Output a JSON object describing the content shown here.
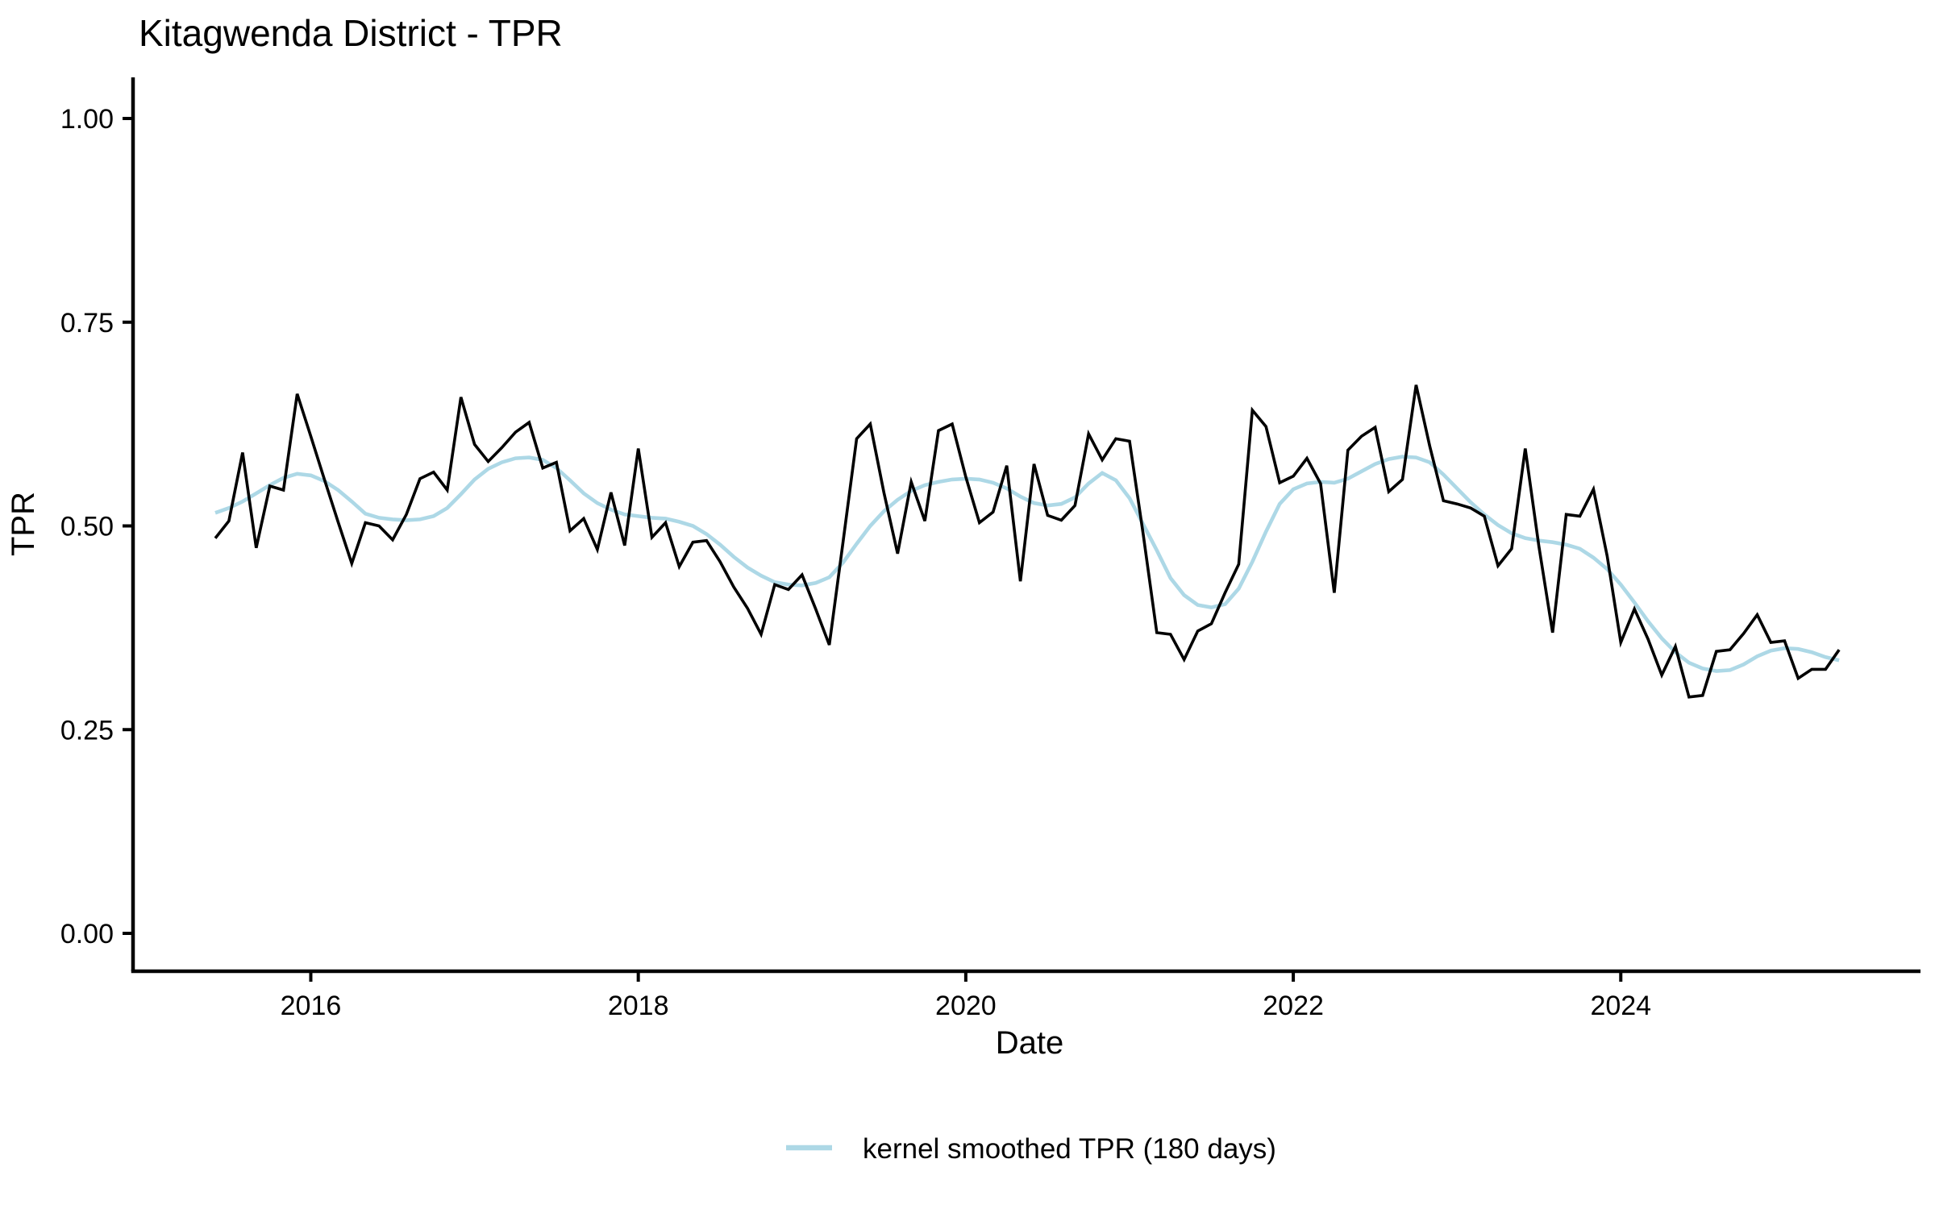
{
  "chart_data": {
    "type": "line",
    "title": "Kitagwenda District - TPR",
    "xlabel": "Date",
    "ylabel": "TPR",
    "ylim": [
      0,
      1
    ],
    "yticks": [
      0,
      0.25,
      0.5,
      0.75,
      1
    ],
    "ytick_labels": [
      "0.00",
      "0.25",
      "0.50",
      "0.75",
      "1.00"
    ],
    "xticks": [
      2016,
      2018,
      2020,
      2022,
      2024
    ],
    "x_start": "2015-06",
    "x_end": "2025-05",
    "x_frequency": "monthly",
    "grid": "off",
    "background": "#ffffff",
    "axis_color": "#000000",
    "series": [
      {
        "id": "tpr-line",
        "name": "TPR",
        "color": "#000000",
        "values": [
          0.485,
          0.506,
          0.59,
          0.473,
          0.549,
          0.544,
          0.662,
          0.61,
          0.557,
          0.505,
          0.454,
          0.504,
          0.5,
          0.483,
          0.514,
          0.558,
          0.566,
          0.544,
          0.658,
          0.6,
          0.579,
          0.596,
          0.615,
          0.627,
          0.571,
          0.578,
          0.494,
          0.509,
          0.471,
          0.541,
          0.476,
          0.595,
          0.486,
          0.504,
          0.45,
          0.48,
          0.482,
          0.456,
          0.425,
          0.399,
          0.367,
          0.428,
          0.422,
          0.44,
          0.398,
          0.354,
          0.48,
          0.607,
          0.625,
          0.541,
          0.466,
          0.554,
          0.506,
          0.617,
          0.625,
          0.56,
          0.504,
          0.517,
          0.574,
          0.432,
          0.576,
          0.513,
          0.507,
          0.525,
          0.613,
          0.581,
          0.607,
          0.604,
          0.49,
          0.369,
          0.367,
          0.336,
          0.371,
          0.38,
          0.418,
          0.453,
          0.642,
          0.622,
          0.553,
          0.561,
          0.583,
          0.552,
          0.418,
          0.593,
          0.61,
          0.621,
          0.542,
          0.557,
          0.673,
          0.598,
          0.531,
          0.527,
          0.522,
          0.512,
          0.451,
          0.472,
          0.595,
          0.475,
          0.369,
          0.514,
          0.512,
          0.545,
          0.463,
          0.357,
          0.398,
          0.361,
          0.317,
          0.352,
          0.29,
          0.292,
          0.346,
          0.348,
          0.368,
          0.391,
          0.357,
          0.359,
          0.313,
          0.324,
          0.324,
          0.348
        ]
      },
      {
        "id": "smoothed-line",
        "name": "kernel smoothed TPR (180 days)",
        "color": "#ADD8E6",
        "values": [
          0.516,
          0.522,
          0.53,
          0.54,
          0.55,
          0.559,
          0.564,
          0.562,
          0.555,
          0.544,
          0.53,
          0.515,
          0.51,
          0.508,
          0.507,
          0.508,
          0.512,
          0.522,
          0.539,
          0.557,
          0.57,
          0.578,
          0.583,
          0.584,
          0.581,
          0.571,
          0.556,
          0.54,
          0.528,
          0.52,
          0.514,
          0.512,
          0.51,
          0.509,
          0.505,
          0.5,
          0.49,
          0.477,
          0.462,
          0.449,
          0.439,
          0.431,
          0.428,
          0.427,
          0.43,
          0.437,
          0.455,
          0.478,
          0.5,
          0.518,
          0.532,
          0.543,
          0.55,
          0.554,
          0.557,
          0.558,
          0.557,
          0.553,
          0.546,
          0.536,
          0.528,
          0.525,
          0.527,
          0.535,
          0.552,
          0.565,
          0.556,
          0.534,
          0.502,
          0.47,
          0.436,
          0.415,
          0.403,
          0.4,
          0.404,
          0.423,
          0.456,
          0.493,
          0.527,
          0.545,
          0.552,
          0.554,
          0.553,
          0.558,
          0.567,
          0.576,
          0.582,
          0.585,
          0.584,
          0.578,
          0.563,
          0.546,
          0.529,
          0.514,
          0.501,
          0.491,
          0.485,
          0.482,
          0.48,
          0.477,
          0.472,
          0.461,
          0.447,
          0.428,
          0.406,
          0.383,
          0.362,
          0.345,
          0.332,
          0.325,
          0.322,
          0.323,
          0.33,
          0.34,
          0.347,
          0.35,
          0.349,
          0.345,
          0.339,
          0.335
        ]
      }
    ],
    "legend": {
      "position": "bottom",
      "entries": [
        "kernel smoothed TPR (180 days)"
      ]
    }
  }
}
